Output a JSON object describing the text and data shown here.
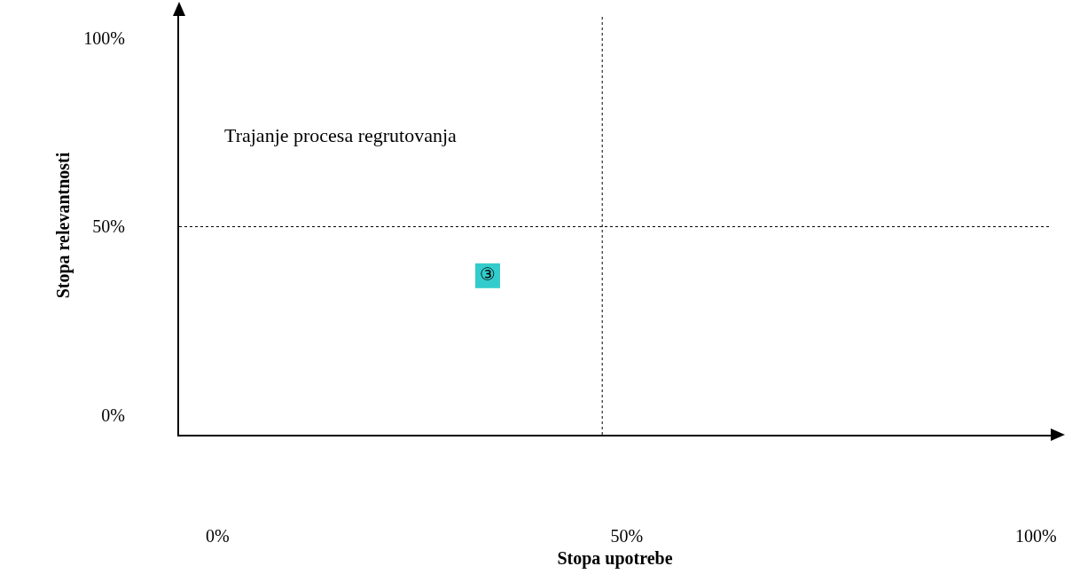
{
  "chart_data": {
    "type": "scatter",
    "xlabel": "Stopa upotrebe",
    "ylabel": "Stopa relevantnosti",
    "annotations": [
      "Trajanje procesa regrutovanja"
    ],
    "x": [
      33
    ],
    "series": [
      {
        "color": "#33cccc",
        "values": [
          37
        ],
        "value_labels": [
          "③"
        ]
      }
    ],
    "xlim": [
      -4.7,
      101.8
    ],
    "ylim": [
      -5.1,
      105.8
    ],
    "xticks": [
      {
        "value": 0,
        "label": "0%"
      },
      {
        "value": 50,
        "label": "50%"
      },
      {
        "value": 100,
        "label": "100%"
      }
    ],
    "yticks": [
      {
        "value": 0,
        "label": "0%"
      },
      {
        "value": 50,
        "label": "50%"
      },
      {
        "value": 100,
        "label": "100%"
      }
    ],
    "ref_lines": [
      {
        "axis": "x",
        "value": 47,
        "line_style": "dotted"
      },
      {
        "axis": "y",
        "value": 50,
        "line_style": "dotted"
      }
    ],
    "grid": false,
    "marker": "square"
  }
}
